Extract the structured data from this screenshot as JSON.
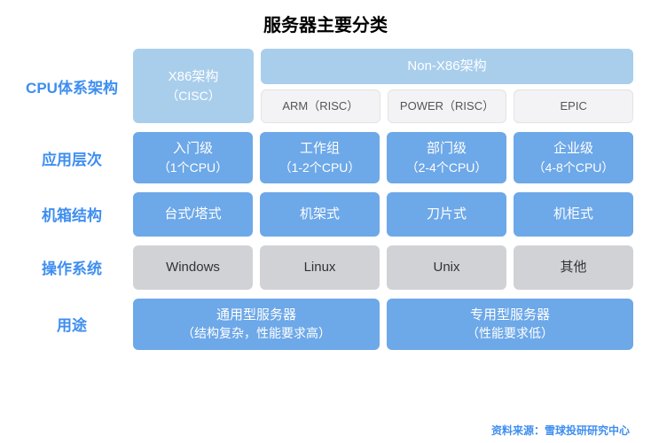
{
  "title": "服务器主要分类",
  "cpu": {
    "label": "CPU体系架构",
    "x86_l1": "X86架构",
    "x86_l2": "（CISC）",
    "nonx86": "Non-X86架构",
    "sub1": "ARM（RISC）",
    "sub2": "POWER（RISC）",
    "sub3": "EPIC"
  },
  "app": {
    "label": "应用层次",
    "c1a": "入门级",
    "c1b": "（1个CPU）",
    "c2a": "工作组",
    "c2b": "（1-2个CPU）",
    "c3a": "部门级",
    "c3b": "（2-4个CPU）",
    "c4a": "企业级",
    "c4b": "（4-8个CPU）"
  },
  "chassis": {
    "label": "机箱结构",
    "c1": "台式/塔式",
    "c2": "机架式",
    "c3": "刀片式",
    "c4": "机柜式"
  },
  "os": {
    "label": "操作系统",
    "c1": "Windows",
    "c2": "Linux",
    "c3": "Unix",
    "c4": "其他"
  },
  "purpose": {
    "label": "用途",
    "c1a": "通用型服务器",
    "c1b": "（结构复杂，性能要求高）",
    "c2a": "专用型服务器",
    "c2b": "（性能要求低）"
  },
  "footer": "资料来源：雪球投研研究中心",
  "colors": {
    "light_blue": "#a9ceec",
    "mid_blue": "#6da8e8",
    "pale_gray": "#f3f3f5",
    "gray": "#d0d2d6",
    "label_text": "#3e8ef0",
    "title_text": "#000000",
    "bg": "#ffffff"
  },
  "fontsize": {
    "title": 20,
    "label": 17,
    "cell": 15,
    "cell_sub": 14,
    "subrow": 13,
    "footer": 12
  }
}
